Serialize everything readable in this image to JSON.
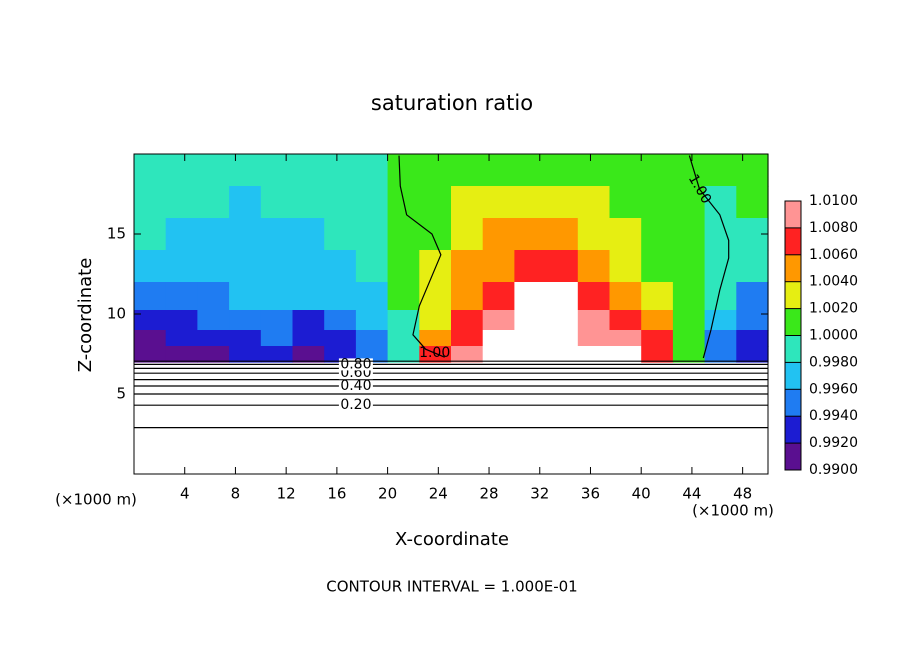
{
  "chart_data": {
    "type": "contour",
    "title": "saturation ratio",
    "x_label": "X-coordinate",
    "y_label": "Z-coordinate",
    "x_unit_left": "(×1000 m)",
    "x_unit_right": "(×1000 m)",
    "note": "CONTOUR INTERVAL = 1.000E-01",
    "xlim": [
      0,
      50
    ],
    "ylim": [
      0,
      20
    ],
    "xticks": [
      4,
      8,
      12,
      16,
      20,
      24,
      28,
      32,
      36,
      40,
      44,
      48
    ],
    "yticks": [
      5,
      10,
      15
    ],
    "x": [
      1.25,
      3.75,
      6.25,
      8.75,
      11.25,
      13.75,
      16.25,
      18.75,
      21.25,
      23.75,
      26.25,
      28.75,
      31.25,
      33.75,
      36.25,
      38.75,
      41.25,
      43.75,
      46.25,
      48.75
    ],
    "z": [
      19,
      17,
      15,
      13,
      11,
      9.5,
      8.5,
      7.5
    ],
    "values": [
      [
        0.9995,
        0.9996,
        0.9994,
        0.9992,
        0.9993,
        0.9995,
        0.9996,
        0.9997,
        1.0002,
        1.0008,
        1.0012,
        1.0016,
        1.0018,
        1.0016,
        1.0012,
        1.0008,
        1.0005,
        1.0003,
        1.0002,
        1.0003
      ],
      [
        0.999,
        0.9988,
        0.9982,
        0.9978,
        0.998,
        0.9984,
        0.9988,
        0.9992,
        1.0003,
        1.0012,
        1.002,
        1.0026,
        1.003,
        1.0028,
        1.0022,
        1.0014,
        1.0008,
        1.0004,
        0.9999,
        1.0
      ],
      [
        0.9982,
        0.9976,
        0.997,
        0.9968,
        0.9972,
        0.9974,
        0.998,
        0.9988,
        1.0004,
        1.0016,
        1.003,
        1.004,
        1.0044,
        1.0042,
        1.0034,
        1.0022,
        1.0012,
        1.0005,
        0.9996,
        0.9992
      ],
      [
        0.9972,
        0.9968,
        0.9966,
        0.997,
        0.9972,
        0.9968,
        0.9974,
        0.9984,
        1.0004,
        1.002,
        1.004,
        1.0056,
        1.0064,
        1.006,
        1.0048,
        1.0034,
        1.0018,
        1.0006,
        0.999,
        0.9982
      ],
      [
        0.9946,
        0.9956,
        0.9958,
        0.9966,
        0.9968,
        0.996,
        0.9964,
        0.9976,
        1.0002,
        1.0024,
        1.005,
        1.0076,
        1.011,
        1.0104,
        1.0072,
        1.0058,
        1.003,
        1.0008,
        0.998,
        0.9958
      ],
      [
        0.9928,
        0.9934,
        0.9942,
        0.9952,
        0.9956,
        0.9938,
        0.9948,
        0.9966,
        0.9998,
        1.003,
        1.0064,
        1.0092,
        1.012,
        1.012,
        1.0082,
        1.0072,
        1.0044,
        1.001,
        0.9966,
        0.9944
      ],
      [
        0.9916,
        0.992,
        0.9928,
        0.9938,
        0.994,
        0.9924,
        0.9932,
        0.9956,
        0.9996,
        1.0042,
        1.0074,
        1.01,
        1.013,
        1.013,
        1.009,
        1.008,
        1.006,
        1.0014,
        0.9958,
        0.9932
      ],
      [
        0.9902,
        0.991,
        0.9918,
        0.9922,
        0.992,
        0.9914,
        0.992,
        0.9946,
        0.9992,
        1.006,
        1.0082,
        1.0106,
        1.014,
        1.014,
        1.011,
        1.01,
        1.007,
        1.0004,
        0.9948,
        0.9924
      ]
    ],
    "colorbar_ticks": [
      {
        "value": 0.99,
        "label": "0.9900"
      },
      {
        "value": 0.992,
        "label": "0.9920"
      },
      {
        "value": 0.994,
        "label": "0.9940"
      },
      {
        "value": 0.996,
        "label": "0.9960"
      },
      {
        "value": 0.998,
        "label": "0.9980"
      },
      {
        "value": 1.0,
        "label": "1.0000"
      },
      {
        "value": 1.002,
        "label": "1.0020"
      },
      {
        "value": 1.004,
        "label": "1.0040"
      },
      {
        "value": 1.006,
        "label": "1.0060"
      },
      {
        "value": 1.008,
        "label": "1.0080"
      },
      {
        "value": 1.01,
        "label": "1.0100"
      }
    ],
    "colors": [
      "#5a0f90",
      "#1c1cd2",
      "#1f7cf2",
      "#22c2f2",
      "#2ee6bc",
      "#3ae81a",
      "#e6ee12",
      "#ff9800",
      "#ff2222",
      "#ff9494"
    ],
    "over_color": "#ffffff",
    "contours": [
      {
        "level": 0.1,
        "x": [
          0,
          50
        ],
        "z": [
          2.9,
          2.9
        ]
      },
      {
        "level": {
          "value": 0.2,
          "label": "0.20"
        },
        "x": [
          0,
          50
        ],
        "z": [
          4.3,
          4.3
        ]
      },
      {
        "level": 0.3,
        "x": [
          0,
          50
        ],
        "z": [
          5.0,
          5.0
        ]
      },
      {
        "level": {
          "value": 0.4,
          "label": "0.40"
        },
        "x": [
          0,
          50
        ],
        "z": [
          5.5,
          5.5
        ]
      },
      {
        "level": 0.5,
        "x": [
          0,
          50
        ],
        "z": [
          5.9,
          5.9
        ]
      },
      {
        "level": {
          "value": 0.6,
          "label": "0.60"
        },
        "x": [
          0,
          50
        ],
        "z": [
          6.3,
          6.3
        ]
      },
      {
        "level": 0.7,
        "x": [
          0,
          50
        ],
        "z": [
          6.6,
          6.6
        ]
      },
      {
        "level": {
          "value": 0.8,
          "label": "0.80"
        },
        "x": [
          0,
          50
        ],
        "z": [
          6.85,
          6.85
        ]
      },
      {
        "level": 0.9,
        "x": [
          0,
          50
        ],
        "z": [
          7.05,
          7.05
        ]
      },
      {
        "level": {
          "value": 1.0,
          "label": "1.00"
        },
        "x": [
          24.5,
          23,
          22,
          22.5,
          24.2,
          23.5,
          21.5,
          21,
          20.9
        ],
        "z": [
          7.3,
          7.8,
          8.7,
          10.5,
          13.7,
          15,
          16.2,
          18,
          19.9
        ]
      },
      {
        "level": {
          "value": 1.0,
          "label": "1.00"
        },
        "x": [
          44.9,
          45.5,
          46.2,
          46.9,
          46.9,
          46.2,
          44.6,
          43.8
        ],
        "z": [
          7.25,
          9,
          11.5,
          13.5,
          14.6,
          16.2,
          17.8,
          19.9
        ]
      }
    ]
  }
}
